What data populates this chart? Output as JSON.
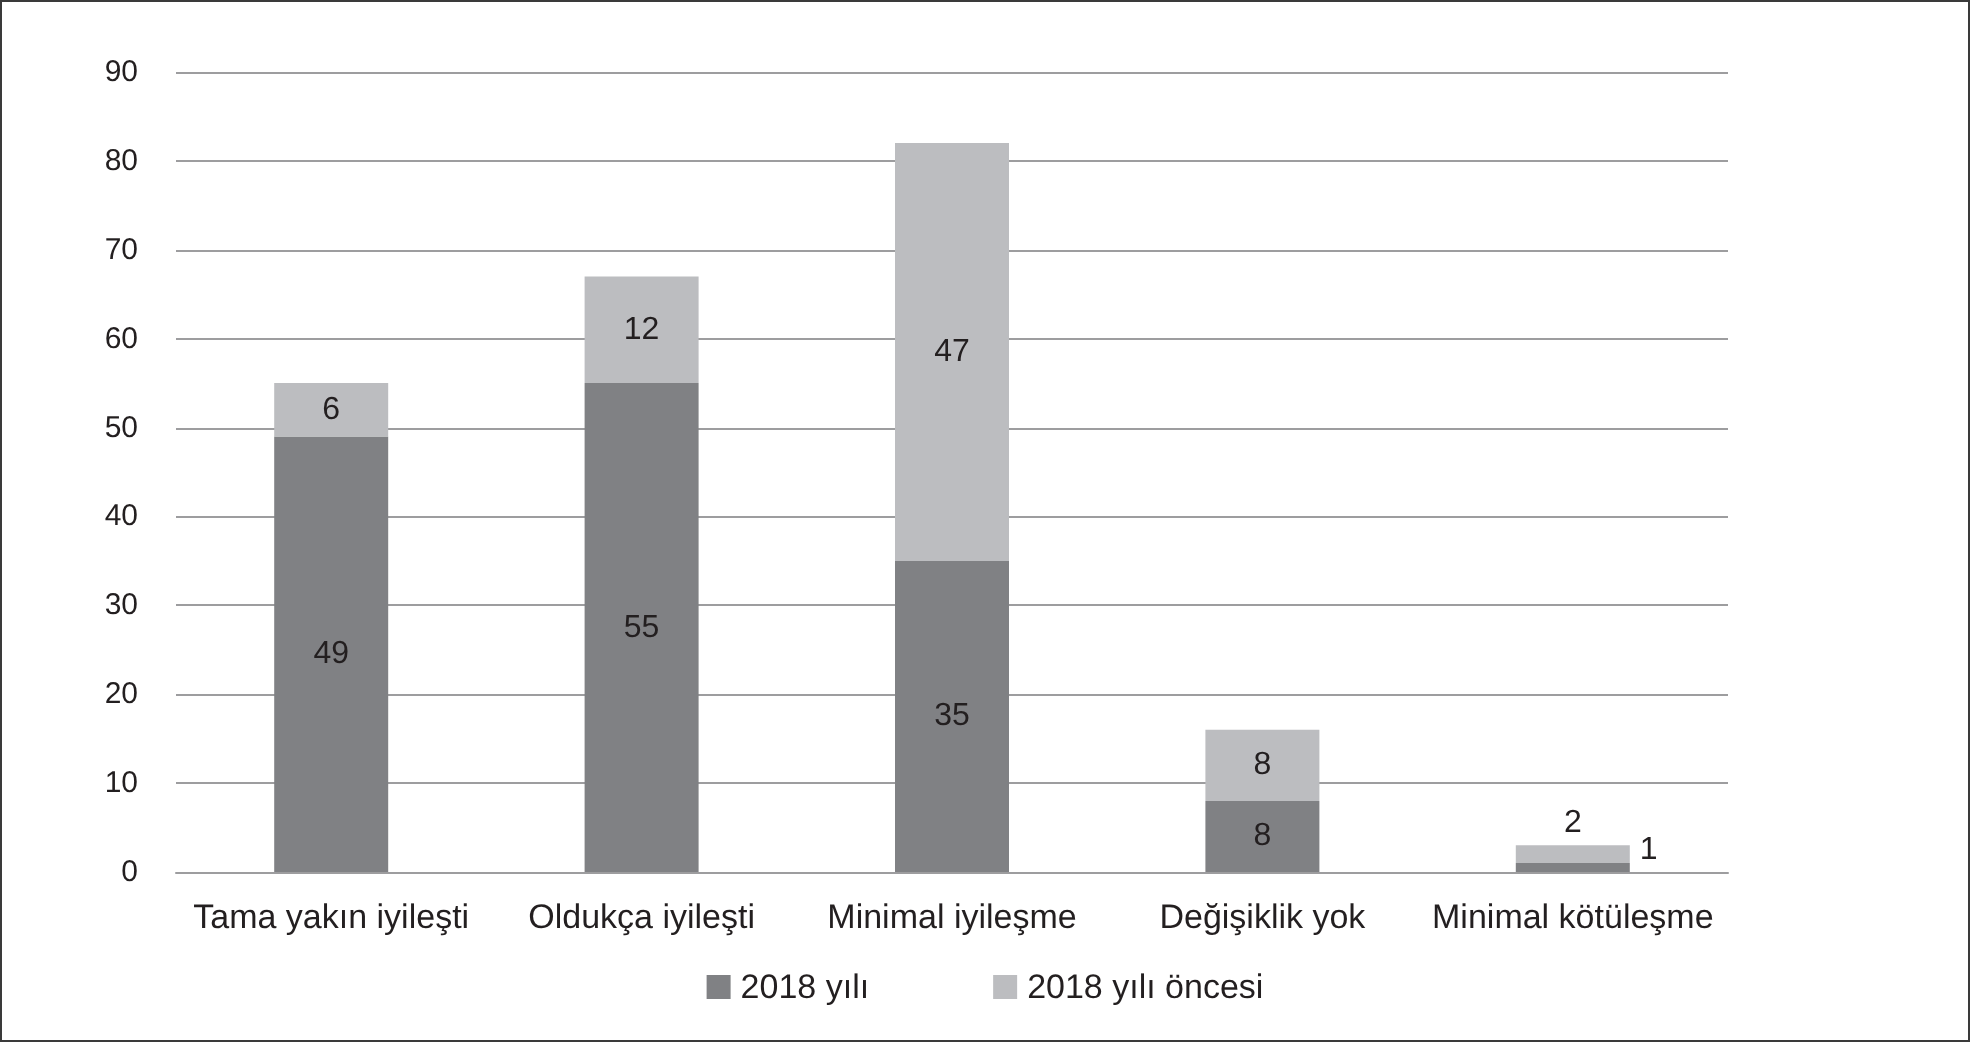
{
  "chart_data": {
    "type": "bar",
    "stacked": true,
    "categories": [
      "Tama yakın iyileşti",
      "Oldukça iyileşti",
      "Minimal iyileşme",
      "Değişiklik yok",
      "Minimal kötüleşme"
    ],
    "series": [
      {
        "name": "2018 yılı",
        "color": "#808184",
        "values": [
          49,
          55,
          35,
          8,
          1
        ]
      },
      {
        "name": "2018 yılı öncesi",
        "color": "#bcbdc0",
        "values": [
          6,
          12,
          47,
          8,
          2
        ]
      }
    ],
    "ylim": [
      0,
      90
    ],
    "yticks": [
      0,
      10,
      20,
      30,
      40,
      50,
      60,
      70,
      80,
      90
    ],
    "grid": "y",
    "legend": "bottom",
    "data_labels": true
  }
}
